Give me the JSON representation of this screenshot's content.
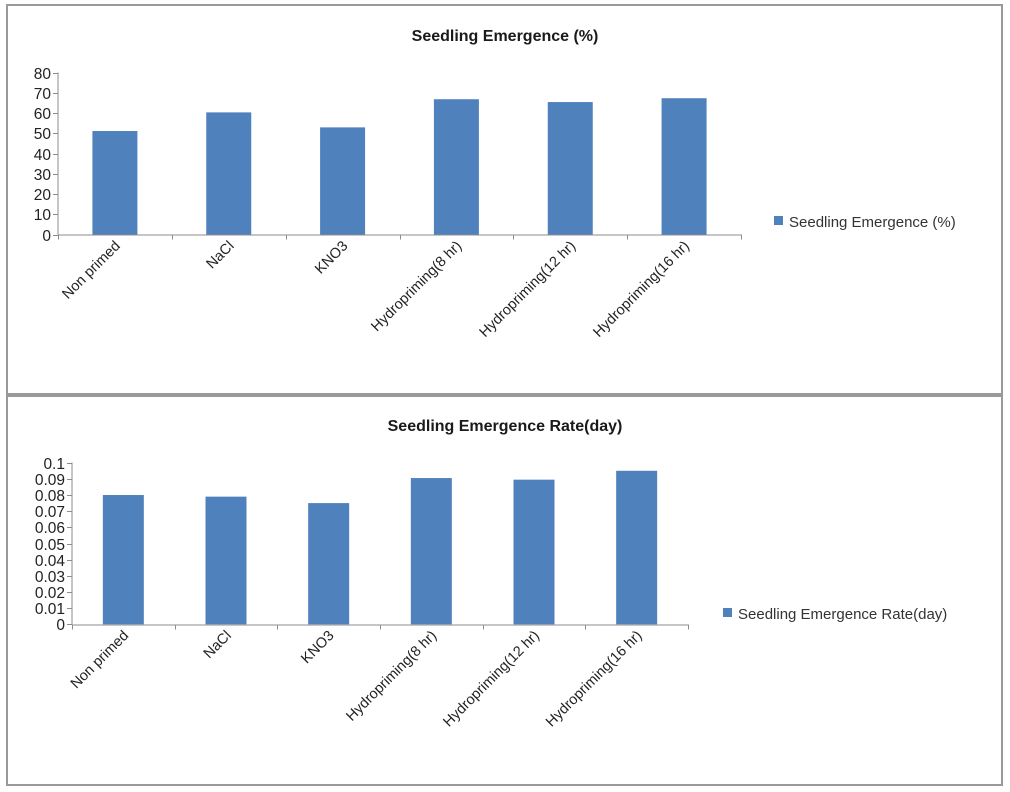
{
  "chart_data": [
    {
      "type": "bar",
      "title": "Seedling Emergence (%)",
      "xlabel": "",
      "ylabel": "",
      "categories": [
        "Non primed",
        "NaCl",
        "KNO3",
        "Hydropriming(8 hr)",
        "Hydropriming(12 hr)",
        "Hydropriming(16 hr)"
      ],
      "series": [
        {
          "name": "Seedling Emergence (%)",
          "values": [
            51.2,
            60.4,
            53.0,
            66.9,
            65.5,
            67.4
          ]
        }
      ],
      "ylim": [
        0,
        80
      ],
      "yticks": [
        0,
        10,
        20,
        30,
        40,
        50,
        60,
        70,
        80
      ],
      "ytick_labels": [
        "0",
        "10",
        "20",
        "30",
        "40",
        "50",
        "60",
        "70",
        "80"
      ],
      "grid": false,
      "legend_position": "right",
      "bar_color": "#4F81BD"
    },
    {
      "type": "bar",
      "title": "Seedling Emergence Rate(day)",
      "xlabel": "",
      "ylabel": "",
      "categories": [
        "Non primed",
        "NaCl",
        "KNO3",
        "Hydropriming(8 hr)",
        "Hydropriming(12 hr)",
        "Hydropriming(16 hr)"
      ],
      "series": [
        {
          "name": "Seedling Emergence Rate(day)",
          "values": [
            0.08,
            0.079,
            0.075,
            0.0905,
            0.0895,
            0.095
          ]
        }
      ],
      "ylim": [
        0,
        0.1
      ],
      "yticks": [
        0,
        0.01,
        0.02,
        0.03,
        0.04,
        0.05,
        0.06,
        0.07,
        0.08,
        0.09,
        0.1
      ],
      "ytick_labels": [
        "0",
        "0.01",
        "0.02",
        "0.03",
        "0.04",
        "0.05",
        "0.06",
        "0.07",
        "0.08",
        "0.09",
        "0.1"
      ],
      "grid": false,
      "legend_position": "right",
      "bar_color": "#4F81BD"
    }
  ]
}
